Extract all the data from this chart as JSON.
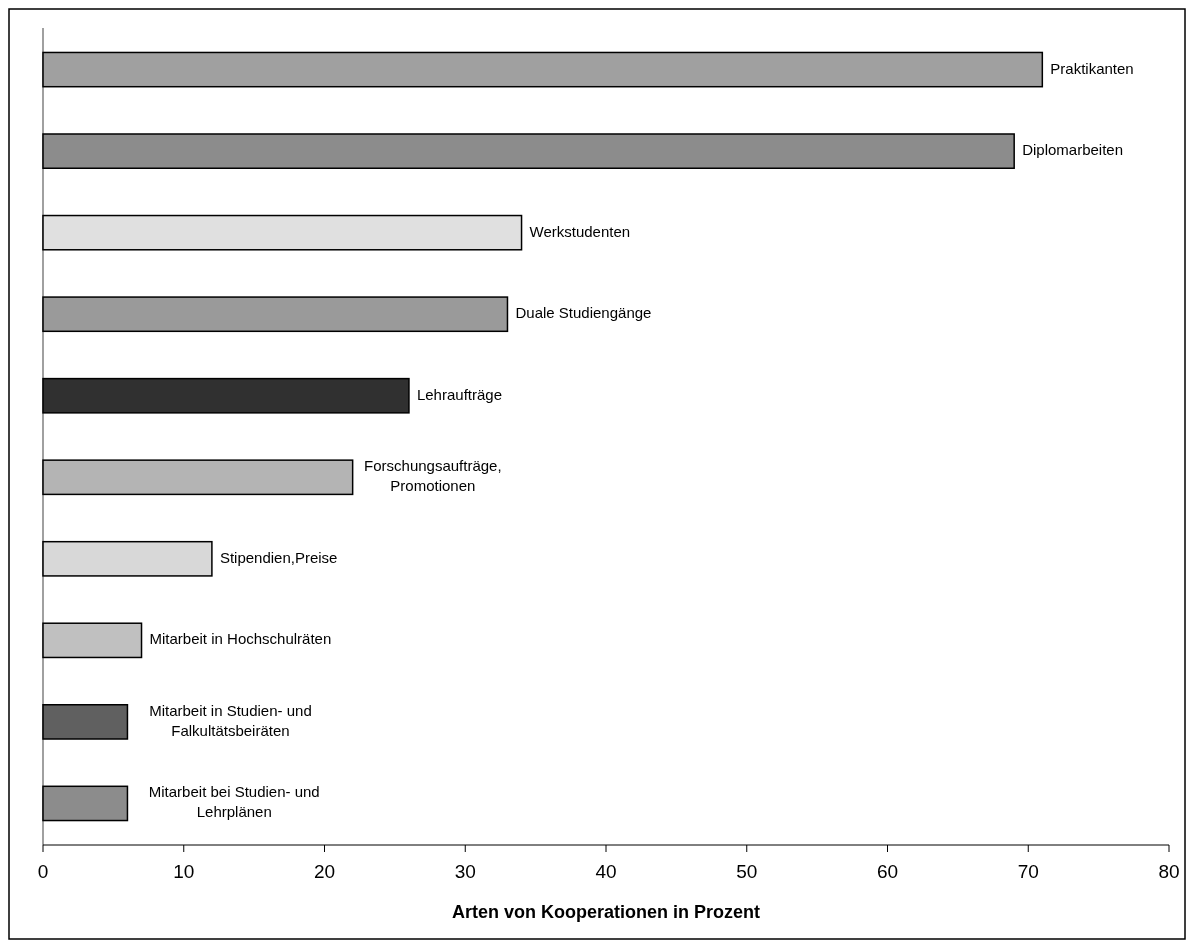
{
  "chart_data": {
    "type": "bar",
    "orientation": "horizontal",
    "xlabel": "Arten von Kooperationen in Prozent",
    "categories": [
      "Praktikanten",
      "Diplomarbeiten",
      "Werkstudenten",
      "Duale Studiengänge",
      "Lehraufträge",
      "Forschungsaufträge,\nPromotionen",
      "Stipendien,Preise",
      "Mitarbeit in Hochschulräten",
      "Mitarbeit in Studien- und\nFalkultätsbeiräten",
      "Mitarbeit bei Studien- und\nLehrplänen"
    ],
    "values": [
      71,
      69,
      34,
      33,
      26,
      22,
      12,
      7,
      6,
      6
    ],
    "colors": [
      "#a0a0a0",
      "#8c8c8c",
      "#e0e0e0",
      "#9a9a9a",
      "#303030",
      "#b4b4b4",
      "#d8d8d8",
      "#c0c0c0",
      "#606060",
      "#8c8c8c"
    ],
    "xlim": [
      0,
      80
    ],
    "xticks": [
      0,
      10,
      20,
      30,
      40,
      50,
      60,
      70,
      80
    ],
    "tick_labels": "x"
  }
}
